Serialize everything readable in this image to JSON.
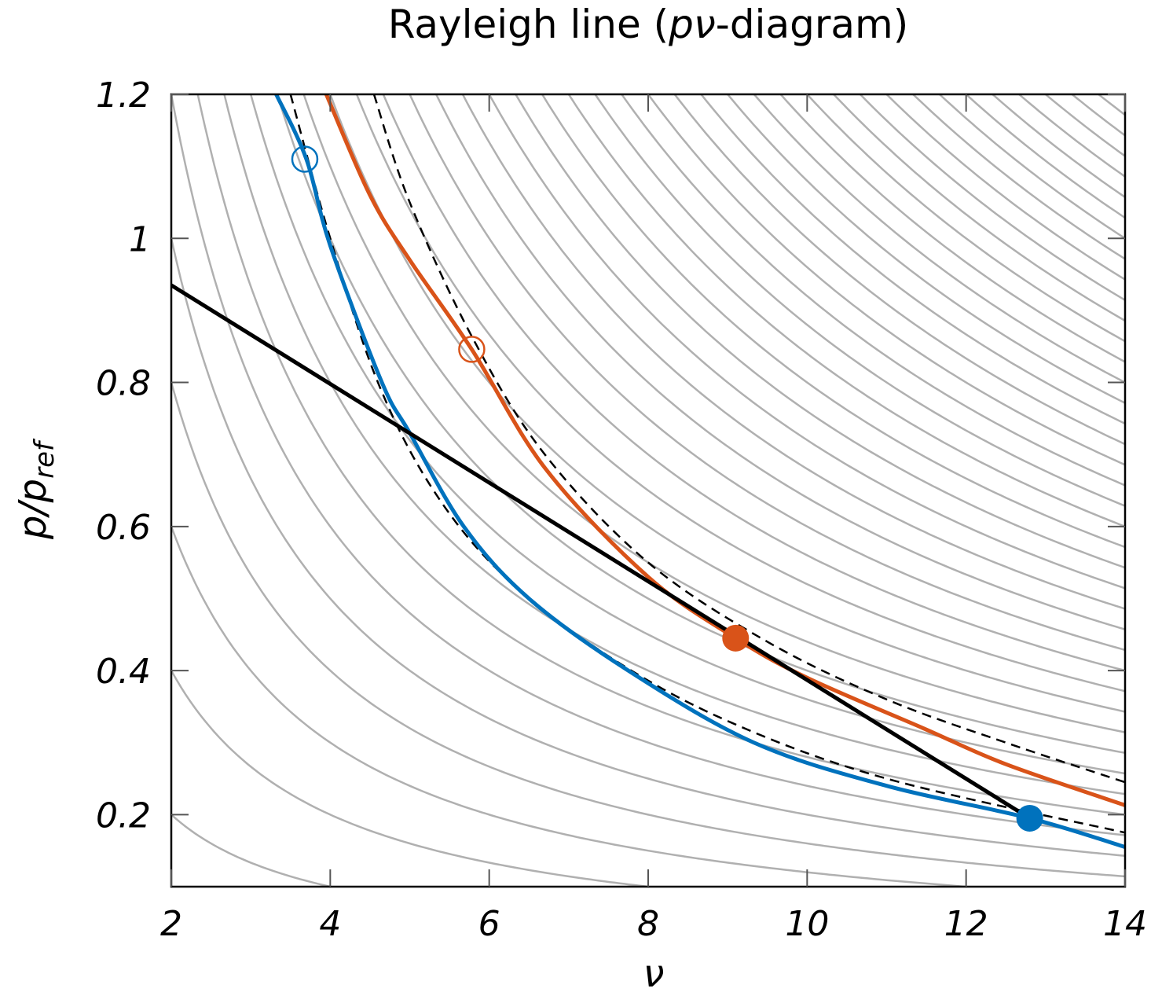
{
  "chart_data": {
    "type": "line",
    "title": [
      "Rayleigh line (",
      "pν",
      "-diagram)"
    ],
    "xlabel": "ν",
    "ylabel": [
      "p/p",
      "ref"
    ],
    "xlim": [
      2,
      14
    ],
    "ylim": [
      0.1,
      1.2
    ],
    "xticks": [
      2,
      4,
      6,
      8,
      10,
      12,
      14
    ],
    "yticks": [
      0.2,
      0.4,
      0.6,
      0.8,
      1,
      1.2
    ],
    "isolines": {
      "color": "#b0b0b0",
      "levels": [
        0.4,
        0.8,
        1.2,
        1.6,
        2.0,
        2.4,
        2.8,
        3.2,
        3.6,
        4.0,
        4.4,
        4.8,
        5.2,
        5.6,
        6.0,
        6.4,
        6.8,
        7.2,
        7.6,
        8.0,
        8.4,
        8.8,
        9.2,
        9.6,
        10.0,
        10.4,
        10.8,
        11.2,
        11.6,
        12.0,
        12.4,
        12.8,
        13.2,
        13.6,
        14.0,
        14.4,
        14.8,
        15.2,
        15.6,
        16.0,
        16.4,
        16.8
      ]
    },
    "series": [
      {
        "color": "#000000",
        "dash": true,
        "x": [
          3.5,
          4.0,
          4.6,
          5.3,
          6.2,
          7.5,
          9,
          11,
          14
        ],
        "values": [
          1.2,
          1.0,
          0.8,
          0.65,
          0.53,
          0.42,
          0.33,
          0.25,
          0.175
        ]
      },
      {
        "color": "#000000",
        "dash": true,
        "x": [
          4.55,
          5.0,
          5.8,
          6.7,
          8,
          9.5,
          11,
          12.5,
          14
        ],
        "values": [
          1.2,
          1.05,
          0.86,
          0.7,
          0.55,
          0.44,
          0.36,
          0.3,
          0.245
        ]
      },
      {
        "color": "#0072bd",
        "dash": false,
        "x": [
          3.32,
          3.7,
          4.0,
          4.65,
          5.0,
          5.68,
          6.5,
          7.75,
          9.33,
          11,
          12.8,
          14
        ],
        "values": [
          1.2,
          1.11,
          0.99,
          0.8,
          0.73,
          0.6,
          0.5,
          0.4,
          0.3,
          0.24,
          0.195,
          0.155
        ]
      },
      {
        "color": "#d95319",
        "dash": false,
        "x": [
          3.95,
          4.5,
          5.0,
          5.78,
          6.71,
          8,
          9.1,
          10,
          11.46,
          12.5,
          14
        ],
        "values": [
          1.2,
          1.06,
          0.97,
          0.846,
          0.68,
          0.53,
          0.445,
          0.39,
          0.32,
          0.27,
          0.213
        ]
      },
      {
        "color": "#000000",
        "dash": false,
        "x": [
          2,
          12.8
        ],
        "values": [
          0.935,
          0.195
        ]
      }
    ],
    "markers": [
      {
        "x": 3.68,
        "y": 1.11,
        "color": "#0072bd",
        "filled": false
      },
      {
        "x": 5.78,
        "y": 0.846,
        "color": "#d95319",
        "filled": false
      },
      {
        "x": 9.1,
        "y": 0.445,
        "color": "#d95319",
        "filled": true
      },
      {
        "x": 12.8,
        "y": 0.195,
        "color": "#0072bd",
        "filled": true
      }
    ]
  }
}
